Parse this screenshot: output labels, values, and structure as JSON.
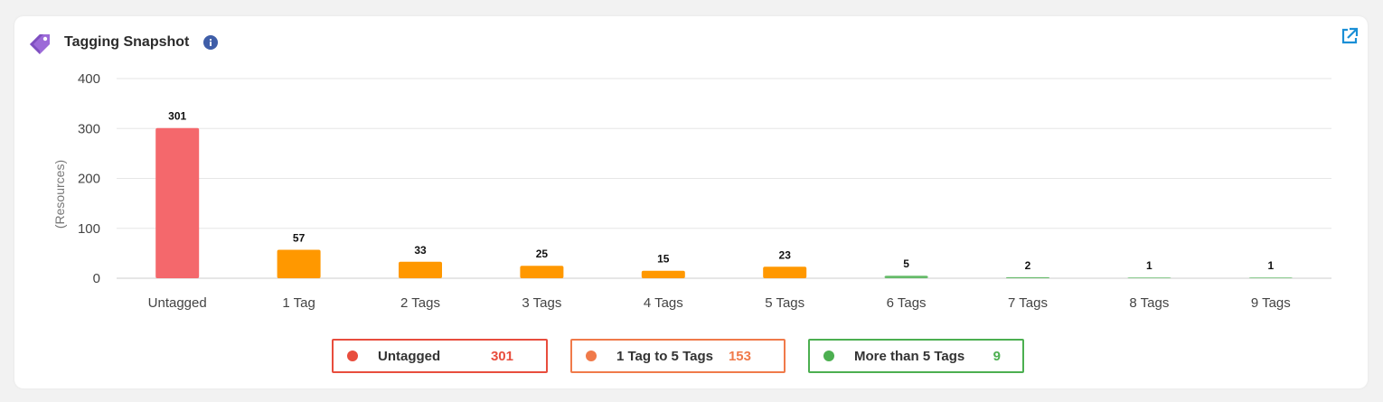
{
  "header": {
    "title": "Tagging Snapshot"
  },
  "icons": {
    "tag": "tag-icon",
    "info": "info-icon",
    "expand": "external-link-icon"
  },
  "chart_data": {
    "type": "bar",
    "categories": [
      "Untagged",
      "1 Tag",
      "2 Tags",
      "3 Tags",
      "4 Tags",
      "5 Tags",
      "6 Tags",
      "7 Tags",
      "8 Tags",
      "9 Tags"
    ],
    "values": [
      301,
      57,
      33,
      25,
      15,
      23,
      5,
      2,
      1,
      1
    ],
    "colors": [
      "#f4686c",
      "#ff9800",
      "#ff9800",
      "#ff9800",
      "#ff9800",
      "#ff9800",
      "#66bb6a",
      "#66bb6a",
      "#66bb6a",
      "#66bb6a"
    ],
    "ylabel": "(Resources)",
    "ylim": [
      0,
      400
    ],
    "yticks": [
      0,
      100,
      200,
      300,
      400
    ],
    "grid": true
  },
  "legend": [
    {
      "label": "Untagged",
      "value": "301",
      "color": "#e84d3d"
    },
    {
      "label": "1 Tag to 5 Tags",
      "value": "153",
      "color": "#f07a4a"
    },
    {
      "label": "More than 5 Tags",
      "value": "9",
      "color": "#4caf50"
    }
  ]
}
